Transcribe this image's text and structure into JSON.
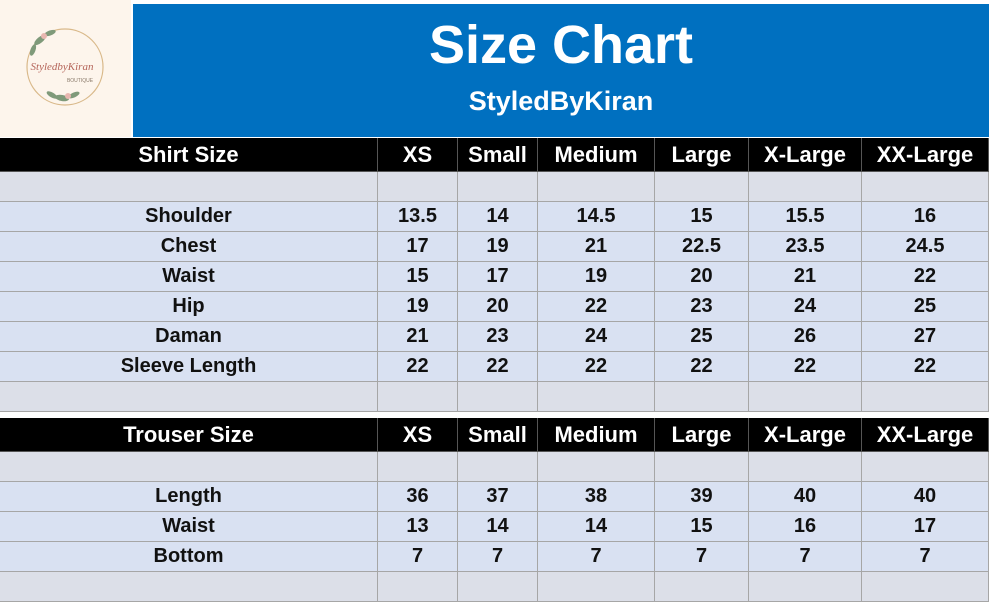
{
  "header": {
    "logo": {
      "name": "StyledbyKiran",
      "tagline": "BOUTIQUE"
    },
    "title": "Size Chart",
    "subtitle": "StyledByKiran"
  },
  "tables": [
    {
      "columns": [
        "Shirt Size",
        "XS",
        "Small",
        "Medium",
        "Large",
        "X-Large",
        "XX-Large"
      ],
      "rows": [
        {
          "label": "Shoulder",
          "values": [
            13.5,
            14,
            14.5,
            15,
            15.5,
            16
          ]
        },
        {
          "label": "Chest",
          "values": [
            17,
            19,
            21,
            22.5,
            23.5,
            24.5
          ]
        },
        {
          "label": "Waist",
          "values": [
            15,
            17,
            19,
            20,
            21,
            22
          ]
        },
        {
          "label": "Hip",
          "values": [
            19,
            20,
            22,
            23,
            24,
            25
          ]
        },
        {
          "label": "Daman",
          "values": [
            21,
            23,
            24,
            25,
            26,
            27
          ]
        },
        {
          "label": "Sleeve Length",
          "values": [
            22,
            22,
            22,
            22,
            22,
            22
          ]
        }
      ]
    },
    {
      "columns": [
        "Trouser Size",
        "XS",
        "Small",
        "Medium",
        "Large",
        "X-Large",
        "XX-Large"
      ],
      "rows": [
        {
          "label": "Length",
          "values": [
            36,
            37,
            38,
            39,
            40,
            40
          ]
        },
        {
          "label": "Waist",
          "values": [
            13,
            14,
            14,
            15,
            16,
            17
          ]
        },
        {
          "label": "Bottom",
          "values": [
            7,
            7,
            7,
            7,
            7,
            7
          ]
        }
      ]
    }
  ]
}
